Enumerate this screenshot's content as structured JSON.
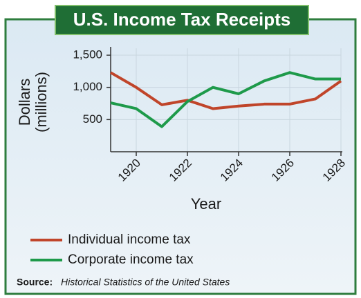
{
  "chart_data": {
    "type": "line",
    "title": "U.S. Income Tax Receipts",
    "x": [
      1919,
      1920,
      1921,
      1922,
      1923,
      1924,
      1925,
      1926,
      1927,
      1928
    ],
    "series": [
      {
        "name": "Individual income tax",
        "color": "#c0452a",
        "values": [
          1230,
          1000,
          730,
          800,
          670,
          710,
          740,
          740,
          820,
          1100
        ]
      },
      {
        "name": "Corporate income tax",
        "color": "#1e9a4a",
        "values": [
          760,
          670,
          390,
          780,
          1000,
          900,
          1100,
          1230,
          1130,
          1130
        ]
      }
    ],
    "xlim": [
      1919,
      1928
    ],
    "xticks": [
      1920,
      1922,
      1924,
      1926,
      1928
    ],
    "ylim": [
      0,
      1500
    ],
    "yticks": [
      500,
      {
        "value": 1000,
        "label": "1,000"
      },
      {
        "value": 1500,
        "label": "1,500"
      }
    ],
    "x_label": "Year",
    "y_label": [
      "Dollars",
      "(millions)"
    ],
    "grid": true,
    "source_label": "Source:",
    "source": "Historical Statistics of the United States"
  }
}
